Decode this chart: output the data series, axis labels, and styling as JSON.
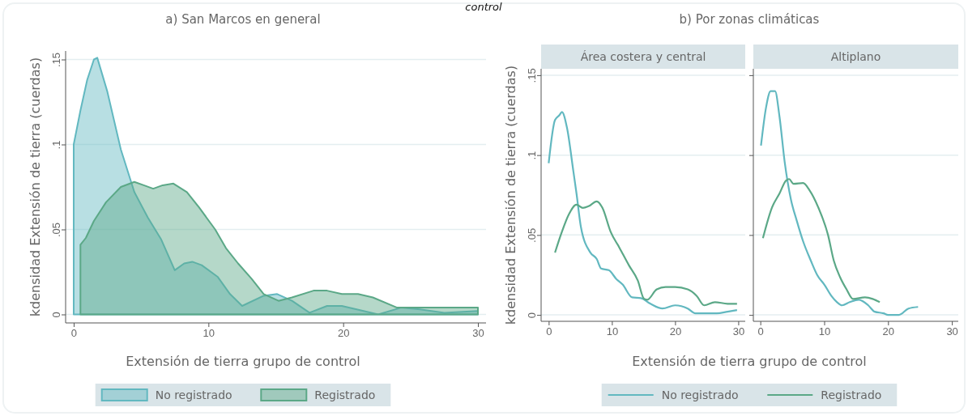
{
  "chart_data": [
    {
      "type": "area",
      "title": "a) San Marcos en general",
      "xlabel": "Extensión de tierra grupo de control",
      "ylabel": "kdensidad Extensión de tierra (cuerdas)",
      "annotations": [
        "control"
      ],
      "xlim": [
        -0.6,
        30.6
      ],
      "ylim": [
        -0.005,
        0.155
      ],
      "xticks": [
        0,
        10,
        20,
        30
      ],
      "yticks": [
        0,
        {
          "value": 0.05,
          "label": ".05"
        },
        {
          "value": 0.1,
          "label": ".1"
        },
        {
          "value": 0.15,
          "label": ".15"
        }
      ],
      "grid": "y",
      "legend": "bottom",
      "series": [
        {
          "name": "No registrado",
          "color": "#62b8c0",
          "x": [
            0,
            0.5,
            1,
            1.5,
            1.75,
            2.5,
            3.5,
            4.5,
            5.5,
            6.5,
            7.5,
            8.2,
            8.8,
            9.5,
            10.7,
            11.6,
            12.5,
            14.1,
            15.1,
            16.2,
            17.5,
            18.8,
            19.9,
            21,
            22.6,
            24.3,
            25.7,
            27.5,
            30
          ],
          "values": [
            0.1,
            0.12,
            0.138,
            0.15,
            0.151,
            0.131,
            0.097,
            0.072,
            0.057,
            0.044,
            0.026,
            0.03,
            0.031,
            0.029,
            0.022,
            0.012,
            0.005,
            0.011,
            0.012,
            0.008,
            0.001,
            0.005,
            0.005,
            0.003,
            0,
            0.004,
            0.003,
            0.001,
            0.002
          ]
        },
        {
          "name": "Registrado",
          "color": "#5ba887",
          "x": [
            0.5,
            0.9,
            1.5,
            2.4,
            3.5,
            4.5,
            5.2,
            5.9,
            6.6,
            7.4,
            8.4,
            9.3,
            10.5,
            11.3,
            12.2,
            13.2,
            14.1,
            15.2,
            16.2,
            17.8,
            18.8,
            19.9,
            21.1,
            22.2,
            24,
            25.7,
            27.5,
            30
          ],
          "values": [
            0.041,
            0.045,
            0.055,
            0.066,
            0.075,
            0.078,
            0.076,
            0.074,
            0.076,
            0.077,
            0.072,
            0.063,
            0.05,
            0.039,
            0.03,
            0.021,
            0.012,
            0.008,
            0.01,
            0.014,
            0.014,
            0.012,
            0.012,
            0.01,
            0.004,
            0.004,
            0.004,
            0.004
          ]
        }
      ]
    },
    {
      "type": "line",
      "title": "b) Por zonas climáticas",
      "subtitle": "Área costera y central",
      "xlabel": "Extensión de tierra grupo de control",
      "ylabel": "kdensidad Extensión de tierra (cuerdas)",
      "xlim": [
        -1.2,
        31.1
      ],
      "ylim": [
        -0.004,
        0.154
      ],
      "xticks": [
        0,
        10,
        20,
        30
      ],
      "yticks": [
        0,
        {
          "value": 0.05,
          "label": ".05"
        },
        {
          "value": 0.1,
          "label": ".1"
        },
        {
          "value": 0.15,
          "label": ".15"
        }
      ],
      "grid": "y",
      "legend": "bottom",
      "series": [
        {
          "name": "No registrado",
          "color": "#62b8c0",
          "x": [
            0,
            1,
            1.7,
            2.1,
            2.9,
            3.9,
            4.4,
            5.1,
            6.6,
            7.6,
            8.3,
            9.5,
            10.7,
            11.7,
            13.2,
            14.6,
            16.1,
            18,
            20,
            22,
            23.2,
            25.4,
            26.6,
            28.3,
            29.8
          ],
          "values": [
            0.095,
            0.122,
            0.125,
            0.127,
            0.117,
            0.09,
            0.076,
            0.055,
            0.039,
            0.035,
            0.029,
            0.028,
            0.0225,
            0.019,
            0.011,
            0.0105,
            0.007,
            0.004,
            0.006,
            0.004,
            0.001,
            0.001,
            0.001,
            0.002,
            0.003
          ]
        },
        {
          "name": "Registrado",
          "color": "#5ba887",
          "x": [
            1,
            2,
            3.2,
            4.4,
            5.4,
            6.3,
            7.6,
            8.5,
            9.8,
            11.2,
            12.7,
            14.1,
            15.1,
            15.6,
            17.1,
            18.5,
            20,
            22,
            23.4,
            24.6,
            26.3,
            28.3,
            29.8
          ],
          "values": [
            0.039,
            0.051,
            0.063,
            0.069,
            0.067,
            0.068,
            0.071,
            0.067,
            0.052,
            0.042,
            0.031,
            0.0215,
            0.01,
            0.0095,
            0.016,
            0.0175,
            0.0175,
            0.016,
            0.012,
            0.006,
            0.008,
            0.007,
            0.007
          ]
        }
      ]
    },
    {
      "type": "line",
      "subtitle": "Altiplano",
      "xlim": [
        -1.1,
        31
      ],
      "ylim": [
        -0.004,
        0.154
      ],
      "xticks": [
        0,
        10,
        20,
        30
      ],
      "yticks": [
        0,
        0.05,
        0.1,
        0.15
      ],
      "grid": "y",
      "tick_labels": "x",
      "series": [
        {
          "color": "#62b8c0",
          "x": [
            0.1,
            0.9,
            1.6,
            2.3,
            3,
            3.8,
            4.8,
            5.7,
            6.7,
            7.9,
            8.9,
            10.1,
            11.1,
            12,
            12.8,
            14,
            15.4,
            16.9,
            17.9,
            19.3,
            20,
            21.7,
            23.2,
            24.7
          ],
          "values": [
            0.106,
            0.13,
            0.14,
            0.14,
            0.124,
            0.096,
            0.072,
            0.059,
            0.046,
            0.034,
            0.025,
            0.0185,
            0.012,
            0.008,
            0.006,
            0.008,
            0.0095,
            0.006,
            0.002,
            0.001,
            0,
            0,
            0.004,
            0.005
          ]
        },
        {
          "color": "#5ba887",
          "x": [
            0.4,
            1.8,
            3,
            4,
            4.5,
            5.2,
            6.7,
            7.7,
            9.1,
            10.6,
            11.5,
            12.5,
            13.5,
            14.5,
            16.4,
            17.6,
            18.7
          ],
          "values": [
            0.048,
            0.067,
            0.076,
            0.084,
            0.085,
            0.082,
            0.0825,
            0.078,
            0.067,
            0.05,
            0.034,
            0.0235,
            0.016,
            0.01,
            0.011,
            0.01,
            0.008
          ]
        }
      ]
    }
  ]
}
